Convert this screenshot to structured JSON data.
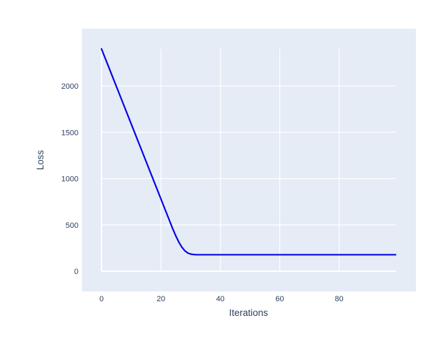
{
  "page": {
    "background_color": "#ffffff"
  },
  "chart_data": {
    "type": "line",
    "title": "",
    "xlabel": "Iterations",
    "ylabel": "Loss",
    "legend": false,
    "grid": true,
    "plot_bg_color": "#e5ecf6",
    "grid_color": "#ffffff",
    "text_color": "#2a3f5f",
    "x_range": [
      0,
      99
    ],
    "y_range": [
      0,
      2400
    ],
    "x_ticks": [
      0,
      20,
      40,
      60,
      80
    ],
    "x_tick_labels": [
      "0",
      "20",
      "40",
      "60",
      "80"
    ],
    "y_ticks": [
      0,
      500,
      1000,
      1500,
      2000
    ],
    "y_tick_labels": [
      "0",
      "500",
      "1000",
      "1500",
      "2000"
    ],
    "series": [
      {
        "name": "loss",
        "color": "#0505e8",
        "line_width": 2.2,
        "x": [
          0,
          1,
          2,
          3,
          4,
          5,
          6,
          7,
          8,
          9,
          10,
          11,
          12,
          13,
          14,
          15,
          16,
          17,
          18,
          19,
          20,
          21,
          22,
          23,
          24,
          25,
          26,
          27,
          28,
          29,
          30,
          31,
          32,
          33,
          34,
          35,
          36,
          37,
          38,
          39,
          40,
          41,
          42,
          43,
          44,
          45,
          46,
          47,
          48,
          49,
          50,
          51,
          52,
          53,
          54,
          55,
          56,
          57,
          58,
          59,
          60,
          61,
          62,
          63,
          64,
          65,
          66,
          67,
          68,
          69,
          70,
          71,
          72,
          73,
          74,
          75,
          76,
          77,
          78,
          79,
          80,
          81,
          82,
          83,
          84,
          85,
          86,
          87,
          88,
          89,
          90,
          91,
          92,
          93,
          94,
          95,
          96,
          97,
          98,
          99
        ],
        "y": [
          2400,
          2319,
          2238,
          2157,
          2076,
          1995,
          1914,
          1833,
          1752,
          1671,
          1590,
          1509,
          1428,
          1347,
          1266,
          1185,
          1104,
          1023,
          942,
          861,
          780,
          699,
          618,
          537,
          456,
          382,
          316,
          262,
          222,
          197,
          185,
          180,
          178,
          178,
          178,
          178,
          178,
          178,
          178,
          178,
          178,
          178,
          178,
          178,
          178,
          178,
          178,
          178,
          178,
          178,
          178,
          178,
          178,
          178,
          178,
          178,
          178,
          178,
          178,
          178,
          178,
          178,
          178,
          178,
          178,
          178,
          178,
          178,
          178,
          178,
          178,
          178,
          178,
          178,
          178,
          178,
          178,
          178,
          178,
          178,
          178,
          178,
          178,
          178,
          178,
          178,
          178,
          178,
          178,
          178,
          178,
          178,
          178,
          178,
          178,
          178,
          178,
          178,
          178,
          178
        ]
      }
    ]
  }
}
